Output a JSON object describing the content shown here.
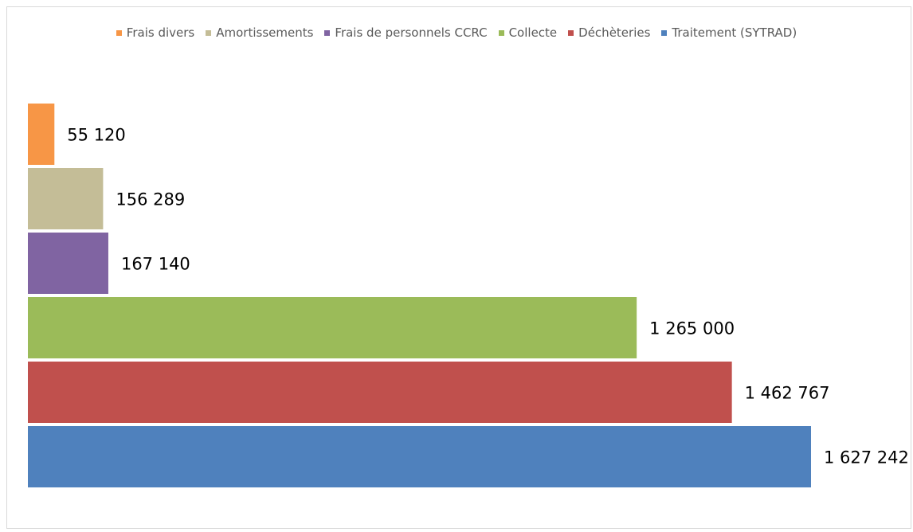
{
  "chart_data": {
    "type": "bar",
    "orientation": "horizontal",
    "legend": "top",
    "series": [
      {
        "name": "Frais divers",
        "color": "#f79646",
        "values": [
          55120
        ],
        "value_labels": [
          "55 120"
        ]
      },
      {
        "name": "Amortissements",
        "color": "#c4bd97",
        "values": [
          156289
        ],
        "value_labels": [
          "156 289"
        ]
      },
      {
        "name": "Frais de personnels CCRC",
        "color": "#8064a2",
        "values": [
          167140
        ],
        "value_labels": [
          "167 140"
        ]
      },
      {
        "name": "Collecte",
        "color": "#9bbb59",
        "values": [
          1265000
        ],
        "value_labels": [
          "1 265 000"
        ]
      },
      {
        "name": "Déchèteries",
        "color": "#c0504d",
        "values": [
          1462767
        ],
        "value_labels": [
          "1 462 767"
        ]
      },
      {
        "name": "Traitement (SYTRAD)",
        "color": "#4f81bd",
        "values": [
          1627242
        ],
        "value_labels": [
          "1 627 242"
        ]
      }
    ]
  }
}
